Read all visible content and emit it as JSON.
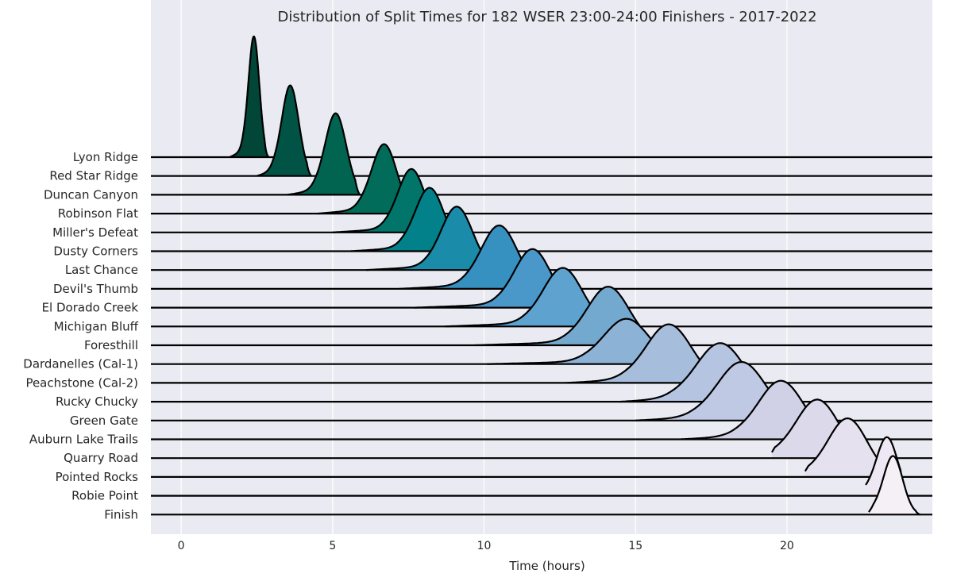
{
  "chart_data": {
    "type": "ridgeline",
    "title": "Distribution of Split Times for 182 WSER 23:00-24:00 Finishers - 2017-2022",
    "xlabel": "Time (hours)",
    "ylabel": "",
    "xlim": [
      -1,
      24.8
    ],
    "xticks": [
      0,
      5,
      10,
      15,
      20
    ],
    "grid": true,
    "colormap": "PuBuGn_r",
    "series": [
      {
        "name": "Lyon Ridge",
        "peak": 2.4,
        "sd": 0.18,
        "left_tail": 1.6,
        "right_end": 2.9,
        "height": 2.0,
        "color": "#014636"
      },
      {
        "name": "Red Star Ridge",
        "peak": 3.6,
        "sd": 0.28,
        "left_tail": 2.5,
        "right_end": 4.3,
        "height": 1.5,
        "color": "#015445"
      },
      {
        "name": "Duncan Canyon",
        "peak": 5.1,
        "sd": 0.35,
        "left_tail": 3.5,
        "right_end": 5.9,
        "height": 1.35,
        "color": "#016450"
      },
      {
        "name": "Robinson Flat",
        "peak": 6.7,
        "sd": 0.42,
        "left_tail": 4.5,
        "right_end": 7.6,
        "height": 1.15,
        "color": "#016c59"
      },
      {
        "name": "Miller's Defeat",
        "peak": 7.6,
        "sd": 0.45,
        "left_tail": 5.0,
        "right_end": 8.6,
        "height": 1.05,
        "color": "#017569"
      },
      {
        "name": "Dusty Corners",
        "peak": 8.2,
        "sd": 0.48,
        "left_tail": 5.6,
        "right_end": 9.3,
        "height": 1.05,
        "color": "#02818a"
      },
      {
        "name": "Last Chance",
        "peak": 9.1,
        "sd": 0.52,
        "left_tail": 6.1,
        "right_end": 10.2,
        "height": 1.05,
        "color": "#1a8ba8"
      },
      {
        "name": "Devil's Thumb",
        "peak": 10.5,
        "sd": 0.6,
        "left_tail": 7.2,
        "right_end": 11.7,
        "height": 1.05,
        "color": "#3690c0"
      },
      {
        "name": "El Dorado Creek",
        "peak": 11.6,
        "sd": 0.6,
        "left_tail": 7.7,
        "right_end": 12.8,
        "height": 0.97,
        "color": "#4a98c9"
      },
      {
        "name": "Michigan Bluff",
        "peak": 12.6,
        "sd": 0.65,
        "left_tail": 8.7,
        "right_end": 13.9,
        "height": 0.97,
        "color": "#5ea2cf"
      },
      {
        "name": "Foresthill",
        "peak": 14.1,
        "sd": 0.7,
        "left_tail": 9.7,
        "right_end": 15.4,
        "height": 0.97,
        "color": "#74a9cf"
      },
      {
        "name": "Dardanelles (Cal-1)",
        "peak": 14.7,
        "sd": 0.75,
        "left_tail": 10.1,
        "right_end": 16.2,
        "height": 0.75,
        "color": "#8cb2d6"
      },
      {
        "name": "Peachstone (Cal-2)",
        "peak": 16.1,
        "sd": 0.75,
        "left_tail": 12.7,
        "right_end": 17.6,
        "height": 0.97,
        "color": "#a6bddb"
      },
      {
        "name": "Rucky Chucky",
        "peak": 17.8,
        "sd": 0.8,
        "left_tail": 14.5,
        "right_end": 19.3,
        "height": 0.97,
        "color": "#b4c4e1"
      },
      {
        "name": "Green Gate",
        "peak": 18.5,
        "sd": 0.8,
        "left_tail": 15.0,
        "right_end": 19.9,
        "height": 0.97,
        "color": "#c0c9e4"
      },
      {
        "name": "Auburn Lake Trails",
        "peak": 19.8,
        "sd": 0.75,
        "left_tail": 16.5,
        "right_end": 21.2,
        "height": 0.97,
        "color": "#d0d1e6"
      },
      {
        "name": "Quarry Road",
        "peak": 21.0,
        "sd": 0.7,
        "left_tail": 19.5,
        "right_end": 22.4,
        "height": 0.97,
        "color": "#dcd9eb"
      },
      {
        "name": "Pointed Rocks",
        "peak": 22.0,
        "sd": 0.65,
        "left_tail": 20.6,
        "right_end": 23.3,
        "height": 0.97,
        "color": "#e6e1ef"
      },
      {
        "name": "Robie Point",
        "peak": 23.3,
        "sd": 0.35,
        "left_tail": 22.6,
        "right_end": 23.9,
        "height": 0.97,
        "color": "#ede8f3"
      },
      {
        "name": "Finish",
        "peak": 23.5,
        "sd": 0.32,
        "left_tail": 22.7,
        "right_end": 24.4,
        "height": 0.97,
        "color": "#f5eff6"
      }
    ]
  }
}
